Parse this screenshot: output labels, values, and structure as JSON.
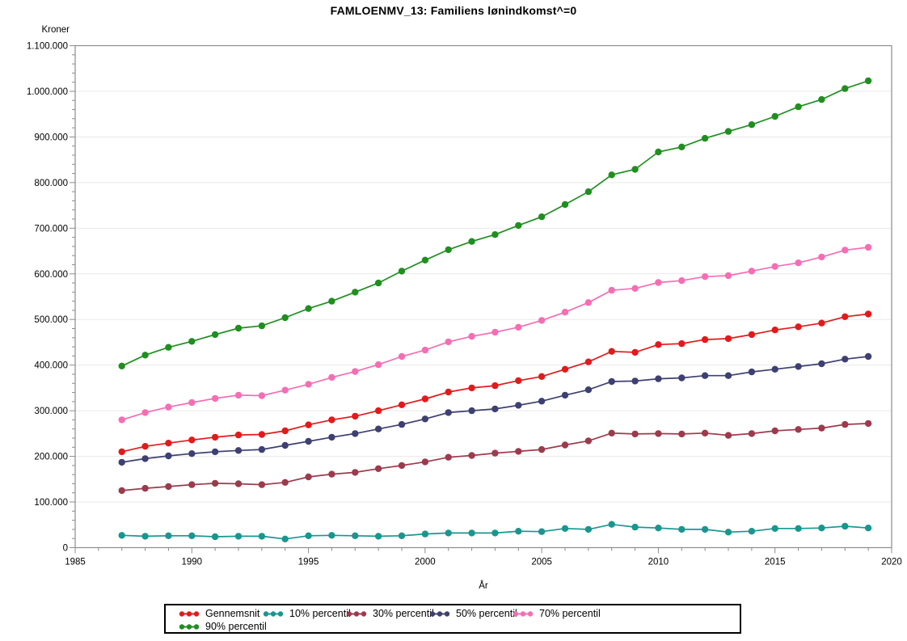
{
  "page": {
    "background": "#FFFFFF"
  },
  "chart_data": {
    "type": "line",
    "title": "FAMLOENMV_13: Familiens lønindkomst^=0",
    "xlabel": "År",
    "ylabel": "Kroner",
    "x": [
      1987,
      1988,
      1989,
      1990,
      1991,
      1992,
      1993,
      1994,
      1995,
      1996,
      1997,
      1998,
      1999,
      2000,
      2001,
      2002,
      2003,
      2004,
      2005,
      2006,
      2007,
      2008,
      2009,
      2010,
      2011,
      2012,
      2013,
      2014,
      2015,
      2016,
      2017,
      2018,
      2019
    ],
    "series": [
      {
        "name": "Gennemsnit",
        "color": "#E31A1C",
        "values": [
          210000,
          222000,
          229000,
          236000,
          242000,
          247000,
          248000,
          256000,
          269000,
          280000,
          288000,
          300000,
          313000,
          326000,
          341000,
          350000,
          355000,
          366000,
          375000,
          391000,
          407000,
          430000,
          428000,
          445000,
          447000,
          456000,
          458000,
          467000,
          477000,
          484000,
          492000,
          506000,
          512000
        ]
      },
      {
        "name": "10% percentil",
        "color": "#18978F",
        "values": [
          27000,
          25000,
          26000,
          26000,
          24000,
          25000,
          25000,
          19000,
          26000,
          27000,
          26000,
          25000,
          26000,
          30000,
          32000,
          32000,
          32000,
          36000,
          35000,
          42000,
          40000,
          51000,
          45000,
          43000,
          40000,
          40000,
          34000,
          36000,
          42000,
          42000,
          43000,
          47000,
          43000
        ]
      },
      {
        "name": "30% percentil",
        "color": "#9D3A4D",
        "values": [
          125000,
          130000,
          134000,
          138000,
          141000,
          140000,
          138000,
          143000,
          155000,
          161000,
          165000,
          173000,
          180000,
          188000,
          198000,
          202000,
          207000,
          211000,
          215000,
          225000,
          234000,
          251000,
          249000,
          250000,
          249000,
          251000,
          246000,
          250000,
          256000,
          259000,
          262000,
          270000,
          272000
        ]
      },
      {
        "name": "50% percentil",
        "color": "#3E4072",
        "values": [
          187000,
          195000,
          201000,
          206000,
          210000,
          213000,
          215000,
          224000,
          233000,
          242000,
          250000,
          260000,
          270000,
          282000,
          296000,
          300000,
          304000,
          312000,
          321000,
          334000,
          346000,
          364000,
          365000,
          370000,
          372000,
          377000,
          377000,
          385000,
          391000,
          397000,
          403000,
          413000,
          419000
        ]
      },
      {
        "name": "70% percentil",
        "color": "#F56EB3",
        "values": [
          280000,
          296000,
          308000,
          318000,
          327000,
          334000,
          333000,
          345000,
          358000,
          373000,
          386000,
          401000,
          419000,
          433000,
          451000,
          463000,
          472000,
          483000,
          498000,
          516000,
          537000,
          564000,
          568000,
          581000,
          585000,
          594000,
          596000,
          606000,
          616000,
          624000,
          637000,
          652000,
          658000
        ]
      },
      {
        "name": "90% percentil",
        "color": "#1F8F1F",
        "values": [
          398000,
          422000,
          439000,
          452000,
          467000,
          481000,
          486000,
          504000,
          524000,
          540000,
          560000,
          580000,
          606000,
          630000,
          653000,
          671000,
          686000,
          706000,
          725000,
          752000,
          780000,
          817000,
          829000,
          867000,
          878000,
          897000,
          912000,
          927000,
          945000,
          966000,
          982000,
          1006000,
          1023000
        ]
      }
    ],
    "xlim": [
      1985,
      2020
    ],
    "ylim": [
      0,
      1100000
    ],
    "x_tick_labels": [
      "1985",
      "1990",
      "1995",
      "2000",
      "2005",
      "2010",
      "2015",
      "2020"
    ],
    "y_tick_labels": [
      "0",
      "100.000",
      "200.000",
      "300.000",
      "400.000",
      "500.000",
      "600.000",
      "700.000",
      "800.000",
      "900.000",
      "1.000.000",
      "1.100.000"
    ],
    "x_major_step": 5,
    "x_minor_step": 1,
    "y_major_step": 100000,
    "y_minor_step": 20000,
    "grid": "horizontal",
    "legend_position": "bottom",
    "axis_color": "#8C8C8C",
    "grid_color": "#E9E9E9",
    "text_color": "#000000"
  }
}
